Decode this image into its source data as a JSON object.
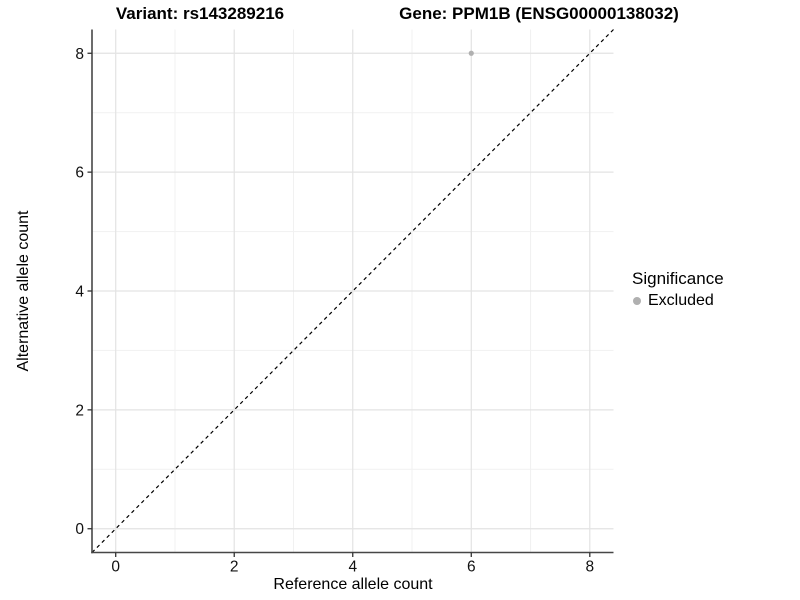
{
  "chart_data": {
    "type": "scatter",
    "title_left": "Variant: rs143289216",
    "title_right": "Gene: PPM1B (ENSG00000138032)",
    "xlabel": "Reference allele count",
    "ylabel": "Alternative allele count",
    "xlim": [
      -0.4,
      8.4
    ],
    "ylim": [
      -0.4,
      8.4
    ],
    "xticks": [
      0,
      2,
      4,
      6,
      8
    ],
    "yticks": [
      0,
      2,
      4,
      6,
      8
    ],
    "x_minor_ticks": [
      1,
      3,
      5,
      7
    ],
    "y_minor_ticks": [
      1,
      3,
      5,
      7
    ],
    "grid": "major and minor gridlines on, white panel background, axis lines on left and bottom only",
    "identity_line": {
      "slope": 1,
      "intercept": 0,
      "style": "dashed",
      "color": "#000000"
    },
    "series": [
      {
        "name": "Excluded",
        "color": "#b0b0b0",
        "points": [
          {
            "x": 6,
            "y": 8
          }
        ]
      }
    ],
    "legend": {
      "title": "Significance",
      "position": "right",
      "items": [
        {
          "label": "Excluded",
          "color": "#b0b0b0"
        }
      ]
    }
  },
  "colors": {
    "background": "#ffffff",
    "grid_major": "#e3e3e3",
    "grid_minor": "#f1f1f1",
    "axis_line": "#474747",
    "tick_mark": "#333333",
    "tick_label": "#111111",
    "point": "#b0b0b0",
    "identity_line": "#000000"
  }
}
